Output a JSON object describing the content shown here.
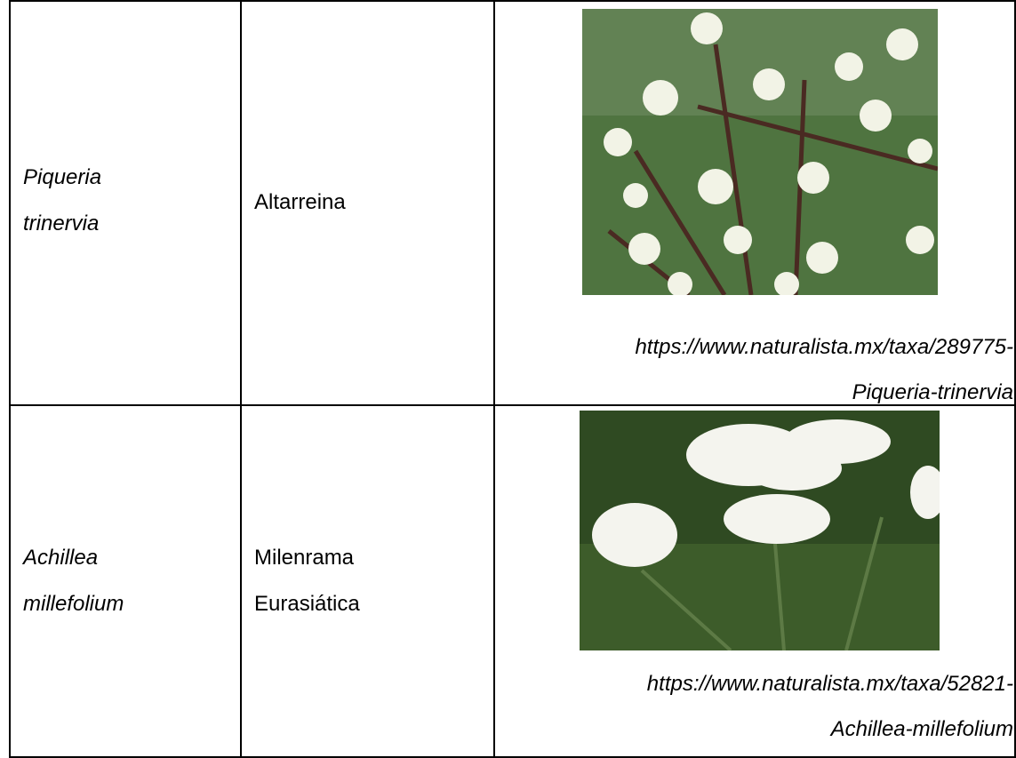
{
  "table": {
    "rows": [
      {
        "scientific_name": [
          "Piqueria",
          "trinervia"
        ],
        "common_name": [
          "Altarreina"
        ],
        "source": [
          "https://www.naturalista.mx/taxa/289775-",
          "Piqueria-trinervia"
        ]
      },
      {
        "scientific_name": [
          "Achillea",
          "millefolium"
        ],
        "common_name": [
          "Milenrama",
          "Eurasiática"
        ],
        "source": [
          "https://www.naturalista.mx/taxa/52821-",
          "Achillea-millefolium"
        ]
      }
    ]
  }
}
